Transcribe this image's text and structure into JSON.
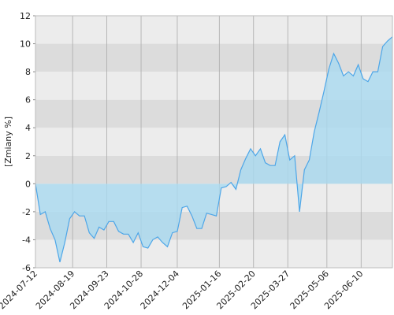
{
  "chart_data": {
    "type": "area",
    "y_label": "[Zmiany %]",
    "x": [
      "2024-07-12",
      "2024-07-17",
      "2024-07-22",
      "2024-07-27",
      "2024-08-01",
      "2024-08-06",
      "2024-08-11",
      "2024-08-16",
      "2024-08-21",
      "2024-08-26",
      "2024-08-31",
      "2024-09-05",
      "2024-09-10",
      "2024-09-15",
      "2024-09-20",
      "2024-09-25",
      "2024-09-30",
      "2024-10-05",
      "2024-10-10",
      "2024-10-15",
      "2024-10-20",
      "2024-10-25",
      "2024-10-30",
      "2024-11-04",
      "2024-11-09",
      "2024-11-14",
      "2024-11-19",
      "2024-11-24",
      "2024-11-29",
      "2024-12-04",
      "2024-12-09",
      "2024-12-14",
      "2024-12-19",
      "2024-12-24",
      "2024-12-29",
      "2025-01-03",
      "2025-01-08",
      "2025-01-13",
      "2025-01-18",
      "2025-01-23",
      "2025-01-28",
      "2025-02-02",
      "2025-02-07",
      "2025-02-12",
      "2025-02-17",
      "2025-02-22",
      "2025-02-27",
      "2025-03-04",
      "2025-03-09",
      "2025-03-14",
      "2025-03-19",
      "2025-03-24",
      "2025-03-29",
      "2025-04-03",
      "2025-04-08",
      "2025-04-13",
      "2025-04-18",
      "2025-04-23",
      "2025-04-28",
      "2025-05-03",
      "2025-05-08",
      "2025-05-13",
      "2025-05-18",
      "2025-05-23",
      "2025-05-28",
      "2025-06-02",
      "2025-06-07",
      "2025-06-12",
      "2025-06-17",
      "2025-06-22",
      "2025-06-27",
      "2025-07-02",
      "2025-07-07",
      "2025-07-12"
    ],
    "values": [
      0,
      -2.2,
      -2.0,
      -3.2,
      -4.0,
      -5.6,
      -4.2,
      -2.5,
      -2.0,
      -2.3,
      -2.3,
      -3.5,
      -3.9,
      -3.1,
      -3.3,
      -2.7,
      -2.7,
      -3.4,
      -3.6,
      -3.6,
      -4.2,
      -3.5,
      -4.5,
      -4.6,
      -4.0,
      -3.8,
      -4.2,
      -4.5,
      -3.5,
      -3.4,
      -1.7,
      -1.6,
      -2.3,
      -3.2,
      -3.2,
      -2.1,
      -2.2,
      -2.3,
      -0.3,
      -0.2,
      0.1,
      -0.4,
      1.0,
      1.8,
      2.5,
      2.0,
      2.5,
      1.5,
      1.3,
      1.3,
      3.0,
      3.5,
      1.7,
      2.0,
      -2.0,
      1.0,
      1.7,
      3.7,
      5.1,
      6.6,
      8.2,
      9.3,
      8.6,
      7.7,
      8.0,
      7.7,
      8.5,
      7.5,
      7.3,
      8.0,
      8.0,
      9.8,
      10.2,
      10.5
    ],
    "color": "#4da6e8",
    "fill_color": "#a9daf0",
    "xlim": [
      "2024-07-12",
      "2025-07-12"
    ],
    "xticks": [
      "2024-07-12",
      "2024-08-19",
      "2024-09-23",
      "2024-10-28",
      "2024-12-04",
      "2025-01-16",
      "2025-02-20",
      "2025-03-27",
      "2025-05-06",
      "2025-06-10"
    ],
    "ylim": [
      -6,
      12
    ],
    "yticks": [
      -6,
      -4,
      -2,
      0,
      2,
      4,
      6,
      8,
      10,
      12
    ],
    "grid": true
  }
}
